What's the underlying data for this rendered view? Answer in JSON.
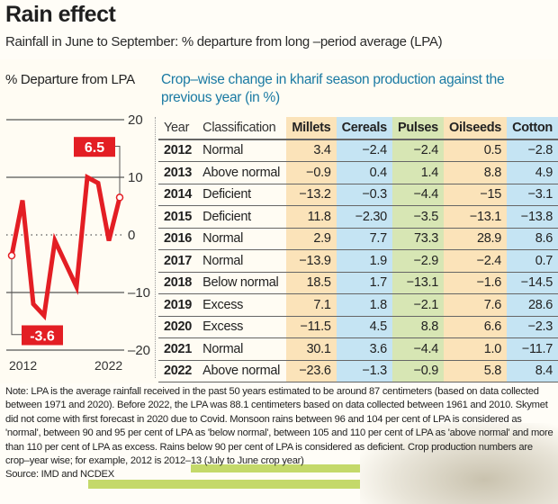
{
  "header": {
    "title": "Rain effect",
    "subtitle": "Rainfall in June to September: % departure from long –period average (LPA)"
  },
  "chart_data": {
    "type": "line",
    "title": "% Departure from LPA",
    "x": [
      2012,
      2013,
      2014,
      2015,
      2016,
      2017,
      2018,
      2019,
      2020,
      2021,
      2022
    ],
    "series": [
      {
        "name": "% departure from LPA",
        "values": [
          -3.6,
          6,
          -12,
          -14,
          -1,
          -5,
          -9,
          10,
          9,
          -1,
          6.5
        ],
        "color": "#e31e24"
      }
    ],
    "annotations": [
      {
        "x": 2012,
        "label": "-3.6"
      },
      {
        "x": 2022,
        "label": "6.5"
      }
    ],
    "x_tick_labels": [
      "2012",
      "2022"
    ],
    "y_ticks": [
      20,
      10,
      0,
      -10,
      -20
    ],
    "y_tick_labels": [
      "20",
      "10",
      "0",
      "–10",
      "–20"
    ],
    "ylim": [
      -20,
      20
    ],
    "grid": true,
    "zero_line": "dotted",
    "xlabel": "",
    "ylabel": ""
  },
  "table": {
    "title": "Crop–wise change in kharif season production against the previous year (in %)",
    "headers": [
      "Year",
      "Classification",
      "Millets",
      "Cereals",
      "Pulses",
      "Oilseeds",
      "Cotton"
    ],
    "rows": [
      {
        "year": "2012",
        "classification": "Normal",
        "values": [
          "3.4",
          "−2.4",
          "−2.4",
          "0.5",
          "−2.8"
        ]
      },
      {
        "year": "2013",
        "classification": "Above normal",
        "values": [
          "−0.9",
          "0.4",
          "1.4",
          "8.8",
          "4.9"
        ]
      },
      {
        "year": "2014",
        "classification": "Deficient",
        "values": [
          "−13.2",
          "−0.3",
          "−4.4",
          "−15",
          "−3.1"
        ]
      },
      {
        "year": "2015",
        "classification": "Deficient",
        "values": [
          "11.8",
          "−2.30",
          "−3.5",
          "−13.1",
          "−13.8"
        ]
      },
      {
        "year": "2016",
        "classification": "Normal",
        "values": [
          "2.9",
          "7.7",
          "73.3",
          "28.9",
          "8.6"
        ]
      },
      {
        "year": "2017",
        "classification": "Normal",
        "values": [
          "−13.9",
          "1.9",
          "−2.9",
          "−2.4",
          "0.7"
        ]
      },
      {
        "year": "2018",
        "classification": "Below normal",
        "values": [
          "18.5",
          "1.7",
          "−13.1",
          "−1.6",
          "−14.5"
        ]
      },
      {
        "year": "2019",
        "classification": "Excess",
        "values": [
          "7.1",
          "1.8",
          "−2.1",
          "7.6",
          "28.6"
        ]
      },
      {
        "year": "2020",
        "classification": "Excess",
        "values": [
          "−11.5",
          "4.5",
          "8.8",
          "6.6",
          "−2.3"
        ]
      },
      {
        "year": "2021",
        "classification": "Normal",
        "values": [
          "30.1",
          "3.6",
          "−4.4",
          "1.0",
          "−11.7"
        ]
      },
      {
        "year": "2022",
        "classification": "Above normal",
        "values": [
          "−23.6",
          "−1.3",
          "−0.9",
          "5.8",
          "8.4"
        ]
      }
    ],
    "colors": {
      "millets": "#fbe3b9",
      "cereals": "#c5e4f3",
      "pulses": "#d7e6b4",
      "oilseeds": "#fbe3b9",
      "cotton": "#c5e4f3"
    }
  },
  "footer": {
    "note": "Note: LPA is the average rainfall received in the past 50 years estimated to be around 87 centimeters (based on data collected between 1971 and 2020). Before 2022, the LPA was 88.1 centimeters based on data collected between 1961 and 2010. Skymet did not come with first forecast in 2020 due to Covid. Monsoon rains between 96 and 104 per cent of LPA is considered as 'normal', between 90 and 95 per cent of LPA as 'below normal', between 105 and 110 per cent of LPA as 'above normal' and more than 110 per cent of LPA as excess. Rains below 90 per cent of LPA is considered as deficient. Crop production numbers are crop–year wise; for example, 2012 is 2012–13 (July to June crop year)",
    "source": "Source: IMD and NCDEX"
  }
}
